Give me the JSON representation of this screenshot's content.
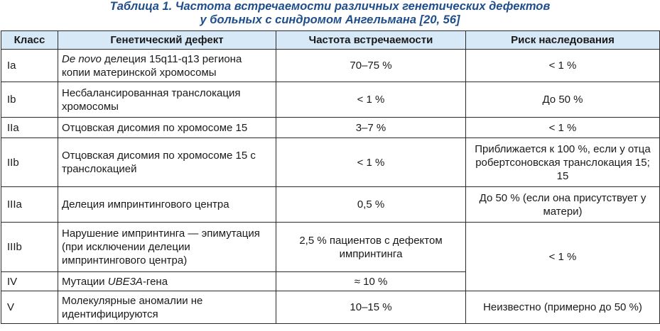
{
  "caption": {
    "line1": "Таблица 1. Частота встречаемости различных генетических дефектов",
    "line2": "у больных с синдромом Ангельмана [20, 56]"
  },
  "table": {
    "headers": [
      "Класс",
      "Генетический дефект",
      "Частота встречаемости",
      "Риск наследования"
    ],
    "rows": [
      {
        "class": "Ia",
        "defect_italic": "De novo",
        "defect": " делеция 15q11-q13 региона копии материнской хромосомы",
        "frequency": "70–75 %",
        "risk": "< 1 %"
      },
      {
        "class": "Ib",
        "defect": "Несбалансированная транслокация хромосомы",
        "frequency": "< 1 %",
        "risk": "До 50 %"
      },
      {
        "class": "IIa",
        "defect": "Отцовская дисомия по хромосоме 15",
        "frequency": "3–7 %",
        "risk": "< 1 %"
      },
      {
        "class": "IIb",
        "defect": "Отцовская дисомия по хромосоме 15 с транслокацией",
        "frequency": "< 1 %",
        "risk": "Приближается к 100 %, если у отца робертсоновская транслокация 15; 15"
      },
      {
        "class": "IIIa",
        "defect": "Делеция импринтингового центра",
        "frequency": "0,5 %",
        "risk": "До 50 % (если она присутствует у матери)"
      },
      {
        "class": "IIIb",
        "defect": "Нарушение импринтинга — эпимутация (при исключении делеции импринтингового центра)",
        "frequency": "2,5 % пациентов с дефектом импринтинга",
        "risk": "< 1 %"
      },
      {
        "class": "IV",
        "defect_pre": "Мутации ",
        "defect_italic": "UBE3A",
        "defect": "-гена",
        "frequency": "≈ 10 %"
      },
      {
        "class": "V",
        "defect": "Молекулярные аномалии не идентифицируются",
        "frequency": "10–15 %",
        "risk": "Неизвестно (примерно до 50 %)"
      }
    ]
  }
}
